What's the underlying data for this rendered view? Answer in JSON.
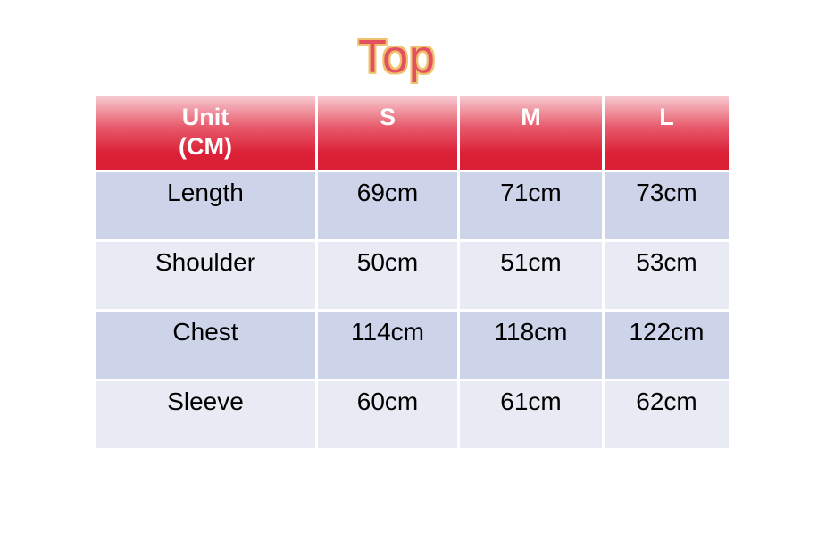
{
  "chart_data": {
    "type": "table",
    "title": "Top",
    "columns": [
      "Unit (CM)",
      "S",
      "M",
      "L"
    ],
    "rows": [
      [
        "Length",
        "69cm",
        "71cm",
        "73cm"
      ],
      [
        "Shoulder",
        "50cm",
        "51cm",
        "53cm"
      ],
      [
        "Chest",
        "114cm",
        "118cm",
        "122cm"
      ],
      [
        "Sleeve",
        "60cm",
        "61cm",
        "62cm"
      ]
    ]
  },
  "header_display": {
    "unit_line1": "Unit",
    "unit_line2": "(CM)"
  },
  "colors": {
    "page-bg": "#ffffff",
    "title-fill": "#e4505f",
    "title-outline": "#eec36f",
    "header-grad-top": "#f7c9cf",
    "header-grad-mid": "#e75a6b",
    "header-grad-bottom": "#db2036",
    "header-text": "#ffffff",
    "row-dark": "#cdd3e8",
    "row-light": "#e9ebf4",
    "body-text": "#000000"
  }
}
